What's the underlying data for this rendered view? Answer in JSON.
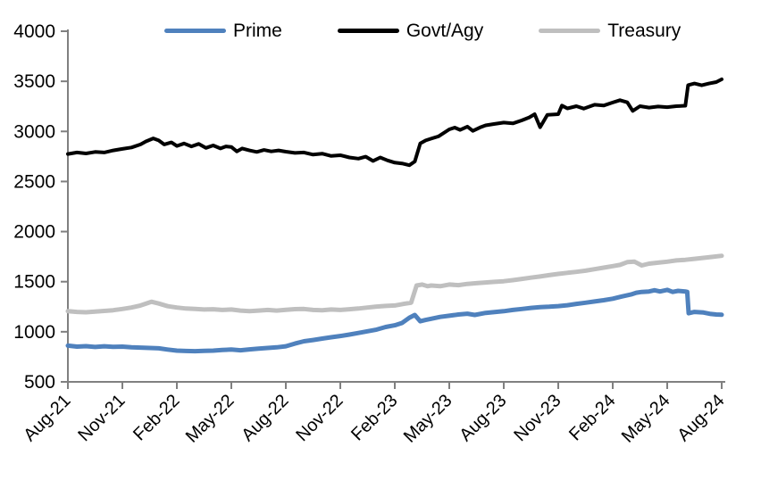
{
  "chart_data": {
    "type": "line",
    "legend_position": "top",
    "grid": false,
    "background_color": "#ffffff",
    "axis_color": "#808080",
    "x_axis": {
      "unit": "months_since_Aug_2021",
      "range": [
        0,
        36
      ],
      "tick_interval_months": 3,
      "tick_labels": [
        "Aug-21",
        "Nov-21",
        "Feb-22",
        "May-22",
        "Aug-22",
        "Nov-22",
        "Feb-23",
        "May-23",
        "Aug-23",
        "Nov-23",
        "Feb-24",
        "May-24",
        "Aug-24"
      ]
    },
    "y_axis": {
      "min": 500,
      "max": 4000,
      "ticks": [
        4000,
        3500,
        3000,
        2500,
        2000,
        1500,
        1000,
        500
      ]
    },
    "series": [
      {
        "name": "Prime",
        "color": "#4F81BD",
        "x": [
          0,
          0.5,
          1,
          1.5,
          2,
          2.5,
          3,
          3.5,
          4,
          4.5,
          5,
          5.5,
          6,
          6.5,
          7,
          7.5,
          8,
          8.5,
          9,
          9.5,
          10,
          10.5,
          11,
          11.5,
          12,
          12.5,
          13,
          13.5,
          14,
          14.5,
          15,
          15.5,
          16,
          16.5,
          17,
          17.5,
          18,
          18.4,
          18.8,
          19.1,
          19.4,
          19.7,
          20,
          20.5,
          21,
          21.5,
          22,
          22.4,
          23,
          23.5,
          24,
          24.5,
          25,
          25.5,
          26,
          26.5,
          27,
          27.5,
          28,
          28.5,
          29,
          29.5,
          30,
          30.5,
          31,
          31.3,
          31.6,
          32,
          32.3,
          32.6,
          33,
          33.3,
          33.6,
          34,
          34.1,
          34.18,
          34.5,
          35,
          35.4,
          35.7,
          36
        ],
        "values": [
          862,
          852,
          856,
          848,
          855,
          850,
          852,
          845,
          842,
          838,
          835,
          822,
          812,
          808,
          806,
          810,
          812,
          818,
          822,
          815,
          824,
          832,
          838,
          845,
          855,
          882,
          905,
          918,
          932,
          945,
          958,
          972,
          988,
          1005,
          1022,
          1048,
          1065,
          1088,
          1140,
          1168,
          1105,
          1118,
          1130,
          1148,
          1160,
          1172,
          1180,
          1168,
          1188,
          1196,
          1205,
          1218,
          1228,
          1238,
          1246,
          1250,
          1256,
          1265,
          1278,
          1290,
          1302,
          1315,
          1330,
          1352,
          1372,
          1390,
          1398,
          1402,
          1415,
          1402,
          1418,
          1398,
          1408,
          1402,
          1398,
          1185,
          1198,
          1192,
          1178,
          1172,
          1170
        ]
      },
      {
        "name": "Govt/Agy",
        "color": "#000000",
        "x": [
          0,
          0.5,
          1,
          1.5,
          2,
          2.5,
          3,
          3.5,
          4,
          4.3,
          4.7,
          5,
          5.3,
          5.7,
          6,
          6.4,
          6.8,
          7.2,
          7.6,
          8,
          8.4,
          8.7,
          9,
          9.3,
          9.6,
          10,
          10.4,
          10.8,
          11.2,
          11.6,
          12,
          12.5,
          13,
          13.5,
          14,
          14.5,
          15,
          15.5,
          16,
          16.4,
          16.8,
          17.2,
          17.6,
          18,
          18.4,
          18.8,
          19.1,
          19.4,
          19.7,
          20,
          20.4,
          21,
          21.3,
          21.6,
          22,
          22.3,
          22.7,
          23,
          23.5,
          24,
          24.5,
          25,
          25.4,
          25.7,
          26,
          26.4,
          27,
          27.2,
          27.5,
          28,
          28.4,
          29,
          29.5,
          30,
          30.4,
          30.8,
          31.1,
          31.5,
          32,
          32.5,
          33,
          33.5,
          34,
          34.15,
          34.5,
          34.9,
          35.3,
          35.7,
          36
        ],
        "values": [
          2775,
          2790,
          2780,
          2795,
          2790,
          2810,
          2825,
          2840,
          2870,
          2900,
          2930,
          2910,
          2870,
          2890,
          2855,
          2880,
          2850,
          2875,
          2835,
          2860,
          2830,
          2850,
          2845,
          2800,
          2830,
          2810,
          2795,
          2815,
          2800,
          2810,
          2798,
          2785,
          2790,
          2768,
          2778,
          2755,
          2762,
          2740,
          2728,
          2748,
          2705,
          2740,
          2710,
          2688,
          2680,
          2662,
          2700,
          2880,
          2910,
          2928,
          2950,
          3020,
          3038,
          3015,
          3048,
          3005,
          3040,
          3060,
          3075,
          3088,
          3080,
          3110,
          3140,
          3172,
          3042,
          3165,
          3172,
          3258,
          3230,
          3252,
          3228,
          3266,
          3258,
          3288,
          3312,
          3290,
          3205,
          3252,
          3238,
          3248,
          3242,
          3252,
          3256,
          3462,
          3478,
          3460,
          3478,
          3492,
          3520
        ]
      },
      {
        "name": "Treasury",
        "color": "#BFBFBF",
        "x": [
          0,
          0.5,
          1,
          1.5,
          2,
          2.5,
          3,
          3.5,
          4,
          4.6,
          5,
          5.5,
          6,
          6.5,
          7,
          7.5,
          8,
          8.5,
          9,
          9.5,
          10,
          10.5,
          11,
          11.5,
          12,
          12.5,
          13,
          13.5,
          14,
          14.5,
          15,
          15.5,
          16,
          16.5,
          17,
          17.5,
          18,
          18.5,
          18.9,
          19.2,
          19.5,
          19.8,
          20,
          20.5,
          21,
          21.5,
          22,
          22.5,
          23,
          23.5,
          24,
          24.5,
          25,
          25.5,
          26,
          26.5,
          27,
          27.5,
          28,
          28.5,
          29,
          29.5,
          30,
          30.4,
          30.8,
          31.2,
          31.6,
          32,
          32.5,
          33,
          33.5,
          34,
          34.5,
          35,
          35.5,
          36
        ],
        "values": [
          1205,
          1198,
          1195,
          1202,
          1208,
          1215,
          1228,
          1242,
          1262,
          1300,
          1282,
          1255,
          1242,
          1232,
          1228,
          1222,
          1225,
          1218,
          1222,
          1212,
          1205,
          1212,
          1218,
          1212,
          1220,
          1226,
          1228,
          1218,
          1215,
          1222,
          1218,
          1225,
          1232,
          1242,
          1252,
          1258,
          1262,
          1278,
          1290,
          1462,
          1472,
          1455,
          1462,
          1455,
          1472,
          1465,
          1478,
          1485,
          1492,
          1498,
          1505,
          1515,
          1528,
          1540,
          1552,
          1565,
          1578,
          1588,
          1598,
          1610,
          1625,
          1640,
          1655,
          1668,
          1695,
          1700,
          1662,
          1680,
          1690,
          1700,
          1712,
          1718,
          1728,
          1738,
          1748,
          1758
        ]
      }
    ]
  }
}
